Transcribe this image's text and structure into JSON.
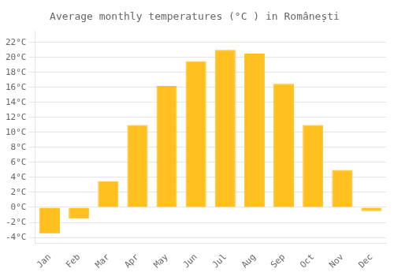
{
  "chart_data": {
    "type": "bar",
    "title": "Average monthly temperatures (°C ) in Românești",
    "categories": [
      "Jan",
      "Feb",
      "Mar",
      "Apr",
      "May",
      "Jun",
      "Jul",
      "Aug",
      "Sep",
      "Oct",
      "Nov",
      "Dec"
    ],
    "values": [
      -3.5,
      -1.5,
      3.5,
      11.0,
      16.2,
      19.5,
      21.0,
      20.5,
      16.5,
      11.0,
      5.0,
      -0.5
    ],
    "color": "#FFC020",
    "ylim": [
      -4.8,
      23.5
    ],
    "yticks": [
      {
        "value": -4,
        "label": "-4°C"
      },
      {
        "value": -2,
        "label": "-2°C"
      },
      {
        "value": 0,
        "label": "0°C"
      },
      {
        "value": 2,
        "label": "2°C"
      },
      {
        "value": 4,
        "label": "4°C"
      },
      {
        "value": 6,
        "label": "6°C"
      },
      {
        "value": 8,
        "label": "8°C"
      },
      {
        "value": 10,
        "label": "10°C"
      },
      {
        "value": 12,
        "label": "12°C"
      },
      {
        "value": 14,
        "label": "14°C"
      },
      {
        "value": 16,
        "label": "16°C"
      },
      {
        "value": 18,
        "label": "18°C"
      },
      {
        "value": 20,
        "label": "20°C"
      },
      {
        "value": 22,
        "label": "22°C"
      }
    ],
    "grid": true
  }
}
